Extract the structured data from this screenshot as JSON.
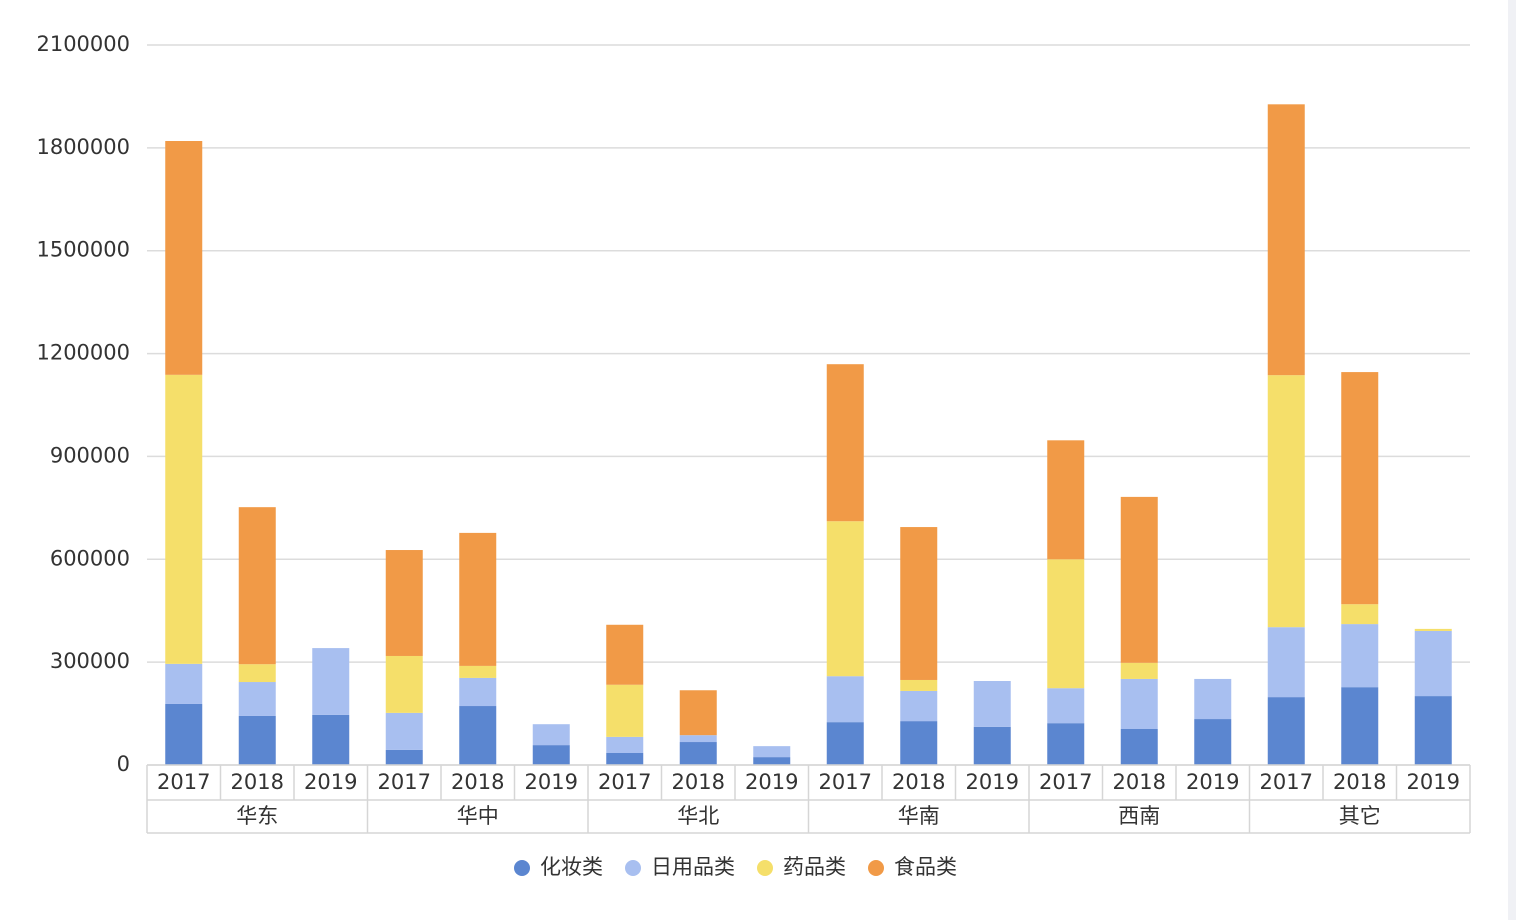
{
  "chart_data": {
    "type": "stacked-bar",
    "categories": [
      "2017",
      "2018",
      "2019",
      "2017",
      "2018",
      "2019",
      "2017",
      "2018",
      "2019",
      "2017",
      "2018",
      "2019",
      "2017",
      "2018",
      "2019",
      "2017",
      "2018",
      "2019"
    ],
    "groups": [
      "华东",
      "华中",
      "华北",
      "华南",
      "西南",
      "其它"
    ],
    "series": [
      {
        "name": "化妆类",
        "color": "#5b86d0",
        "values": [
          178000,
          143000,
          146000,
          44000,
          172000,
          58000,
          35000,
          67000,
          23000,
          125000,
          128000,
          111000,
          122000,
          105000,
          134000,
          198000,
          227000,
          201000
        ]
      },
      {
        "name": "日用品类",
        "color": "#a8bff0",
        "values": [
          117000,
          99000,
          195000,
          108000,
          82000,
          61000,
          47000,
          20000,
          32000,
          134000,
          88000,
          134000,
          102000,
          146000,
          117000,
          204000,
          184000,
          190000
        ]
      },
      {
        "name": "药品类",
        "color": "#f5df6a",
        "values": [
          843000,
          52000,
          0,
          166000,
          35000,
          0,
          152000,
          0,
          0,
          452000,
          32000,
          0,
          376000,
          47000,
          0,
          735000,
          58000,
          6000
        ]
      },
      {
        "name": "食品类",
        "color": "#f19a47",
        "values": [
          682000,
          458000,
          0,
          309000,
          388000,
          0,
          175000,
          131000,
          0,
          458000,
          446000,
          0,
          347000,
          484000,
          0,
          790000,
          677000,
          0
        ]
      }
    ],
    "ylim": [
      0,
      2100000
    ],
    "yticks": [
      0,
      300000,
      600000,
      900000,
      1200000,
      1500000,
      1800000,
      2100000
    ],
    "grid": true
  }
}
